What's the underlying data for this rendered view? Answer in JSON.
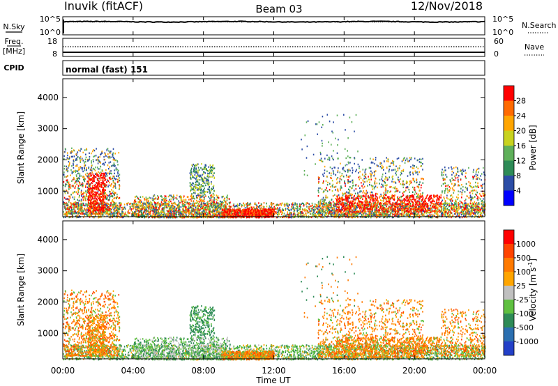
{
  "header": {
    "station": "Inuvik (fitACF)",
    "beam": "Beam 03",
    "date": "12/Nov/2018"
  },
  "chart_data": [
    {
      "type": "line",
      "name": "noise-panel",
      "left_label": "N.Sky",
      "right_label": "N.Search",
      "yticks_left": [
        "10^5",
        "10^0"
      ],
      "yticks_right": [
        "10^5",
        "10^0"
      ],
      "log_level": 4.2,
      "spike_log_level": 5.0
    },
    {
      "type": "line",
      "name": "frequency-panel",
      "left_label_top": "Freq.",
      "left_label_bottom": "[MHz]",
      "right_label": "Nave",
      "yticks_left": [
        "18",
        "8"
      ],
      "yticks_right": [
        "60",
        "0"
      ],
      "ylim": [
        8,
        18
      ],
      "freq_level": 10.2,
      "nave_level": 40,
      "nave_range": [
        0,
        60
      ]
    },
    {
      "type": "table",
      "name": "cpid-panel",
      "label": "CPID",
      "value": "normal (fast) 151"
    },
    {
      "type": "heatmap",
      "name": "power-panel",
      "ylabel": "Slant Range [km]",
      "ylim": [
        180,
        4600
      ],
      "yticks": [
        1000,
        2000,
        3000,
        4000
      ],
      "colorbar_label": "Power [dB]",
      "colorbar_ticks": [
        "28",
        "24",
        "20",
        "16",
        "12",
        "8",
        "4"
      ],
      "colors": [
        "#0000ff",
        "#2c4da6",
        "#2e8b57",
        "#5fb05a",
        "#c8d21e",
        "#ffa500",
        "#ff6a00",
        "#ff0000"
      ]
    },
    {
      "type": "heatmap",
      "name": "velocity-panel",
      "ylabel": "Slant Range [km]",
      "ylim": [
        180,
        4600
      ],
      "yticks": [
        1000,
        2000,
        3000,
        4000
      ],
      "colorbar_label": "Velocity [m s^-1]",
      "colorbar_ticks": [
        "1000",
        "500",
        "100",
        "25",
        "-25",
        "-100",
        "-500",
        "-1000"
      ],
      "colors": [
        "#2340c8",
        "#2b6fb0",
        "#2e8b57",
        "#5fc040",
        "#c0c0c0",
        "#ffa500",
        "#ff7a00",
        "#ff4400",
        "#ff0000"
      ]
    }
  ],
  "xaxis": {
    "ticks": [
      "00:00",
      "04:00",
      "08:00",
      "12:00",
      "16:00",
      "20:00",
      "00:00"
    ],
    "label": "Time UT",
    "range_hours": [
      0,
      24
    ]
  }
}
